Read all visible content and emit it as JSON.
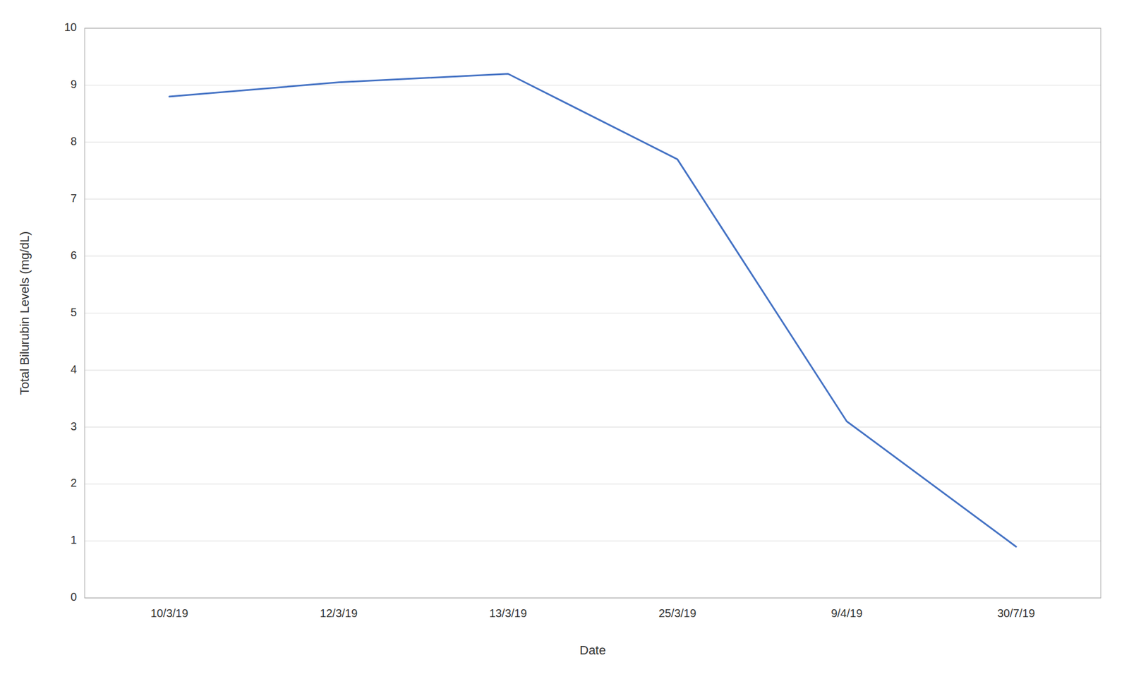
{
  "chart_data": {
    "type": "line",
    "categories": [
      "10/3/19",
      "12/3/19",
      "13/3/19",
      "25/3/19",
      "9/4/19",
      "30/7/19"
    ],
    "values": [
      8.8,
      9.05,
      9.2,
      7.7,
      3.1,
      0.9
    ],
    "color": "#4472C4",
    "xlabel": "Date",
    "ylabel": "Total Bilurubin Levels (mg/dL)",
    "ylim": [
      0,
      10
    ],
    "yticks": [
      0,
      1,
      2,
      3,
      4,
      5,
      6,
      7,
      8,
      9,
      10
    ],
    "grid": true
  }
}
